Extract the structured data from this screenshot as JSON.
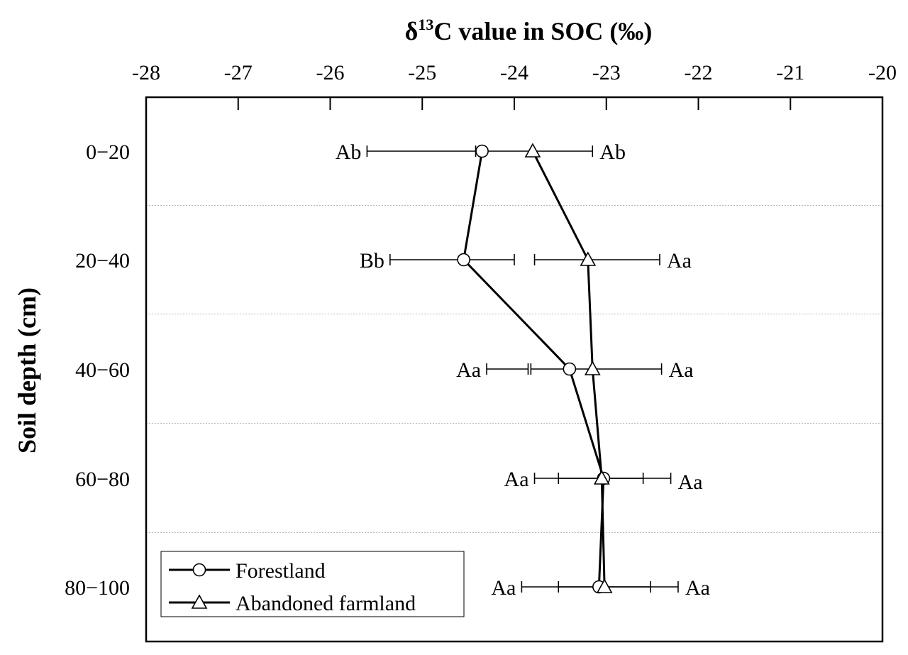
{
  "chart_data": {
    "type": "line",
    "x_title_prefix": "δ",
    "x_title_sup": "13",
    "x_title_rest": "C value in SOC (‰)",
    "ylabel": "Soil depth (cm)",
    "xlim": [
      -28,
      -20
    ],
    "x_ticks": [
      -28,
      -27,
      -26,
      -25,
      -24,
      -23,
      -22,
      -21,
      -20
    ],
    "x_tick_labels": [
      "-28",
      "-27",
      "-26",
      "-25",
      "-24",
      "-23",
      "-22",
      "-21",
      "-20"
    ],
    "categories": [
      "0−20",
      "20−40",
      "40−60",
      "60−80",
      "80−100"
    ],
    "gridlines": "horizontal dotted between depth classes",
    "legend_position": "bottom-left",
    "series": [
      {
        "name": "Forestland",
        "marker": "circle",
        "values": [
          -24.35,
          -24.55,
          -23.4,
          -23.03,
          -23.08
        ],
        "err_low": [
          -25.6,
          -25.35,
          -24.3,
          -23.78,
          -23.92
        ],
        "err_high": [
          -24.38,
          -24.0,
          -23.85,
          -22.6,
          -22.52
        ],
        "labels": [
          "Ab",
          "Bb",
          "Aa",
          "Aa",
          "Aa"
        ]
      },
      {
        "name": "Abandoned farmland",
        "marker": "triangle",
        "values": [
          -23.8,
          -23.2,
          -23.15,
          -23.05,
          -23.02
        ],
        "err_low": [
          -24.42,
          -23.78,
          -23.82,
          -23.52,
          -23.52
        ],
        "err_high": [
          -23.15,
          -22.42,
          -22.4,
          -22.3,
          -22.22
        ],
        "labels": [
          "Ab",
          "Aa",
          "Aa",
          "Aa",
          "Aa"
        ]
      }
    ]
  }
}
